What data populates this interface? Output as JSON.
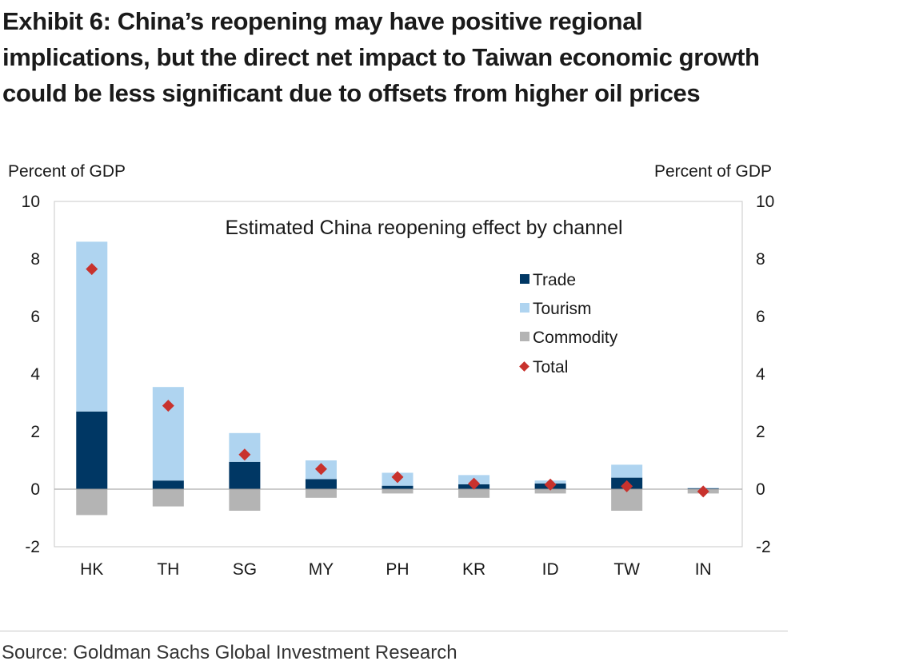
{
  "title_lines": [
    "Exhibit 6: China’s reopening may have positive regional",
    "implications, but the direct net impact to Taiwan economic growth",
    "could be less significant due to offsets from higher oil prices"
  ],
  "source": "Source: Goldman Sachs Global Investment Research",
  "colors": {
    "trade": "#003764",
    "tourism": "#afd4f0",
    "commodity": "#b4b4b4",
    "total": "#c8322d"
  },
  "chart_data": {
    "type": "bar",
    "stacked": true,
    "title": "Estimated China reopening effect by channel",
    "ylabel_left": "Percent of GDP",
    "ylabel_right": "Percent of GDP",
    "ylim": [
      -2,
      10
    ],
    "yticks": [
      "10",
      "8",
      "6",
      "4",
      "2",
      "0",
      "-2"
    ],
    "categories": [
      "HK",
      "TH",
      "SG",
      "MY",
      "PH",
      "KR",
      "ID",
      "TW",
      "IN"
    ],
    "series": [
      {
        "name": "Trade",
        "kind": "bar",
        "values": [
          2.7,
          0.3,
          0.95,
          0.35,
          0.12,
          0.17,
          0.2,
          0.4,
          0.03
        ]
      },
      {
        "name": "Tourism",
        "kind": "bar",
        "values": [
          5.9,
          3.25,
          1.0,
          0.65,
          0.45,
          0.32,
          0.1,
          0.45,
          0.02
        ]
      },
      {
        "name": "Commodity",
        "kind": "bar",
        "values": [
          -0.9,
          -0.6,
          -0.75,
          -0.3,
          -0.15,
          -0.3,
          -0.15,
          -0.75,
          -0.15
        ]
      },
      {
        "name": "Total",
        "kind": "marker",
        "values": [
          7.65,
          2.9,
          1.2,
          0.7,
          0.42,
          0.19,
          0.16,
          0.1,
          -0.08
        ]
      }
    ],
    "legend": [
      "Trade",
      "Tourism",
      "Commodity",
      "Total"
    ],
    "legend_position": "upper-right inside plot",
    "grid": false
  }
}
